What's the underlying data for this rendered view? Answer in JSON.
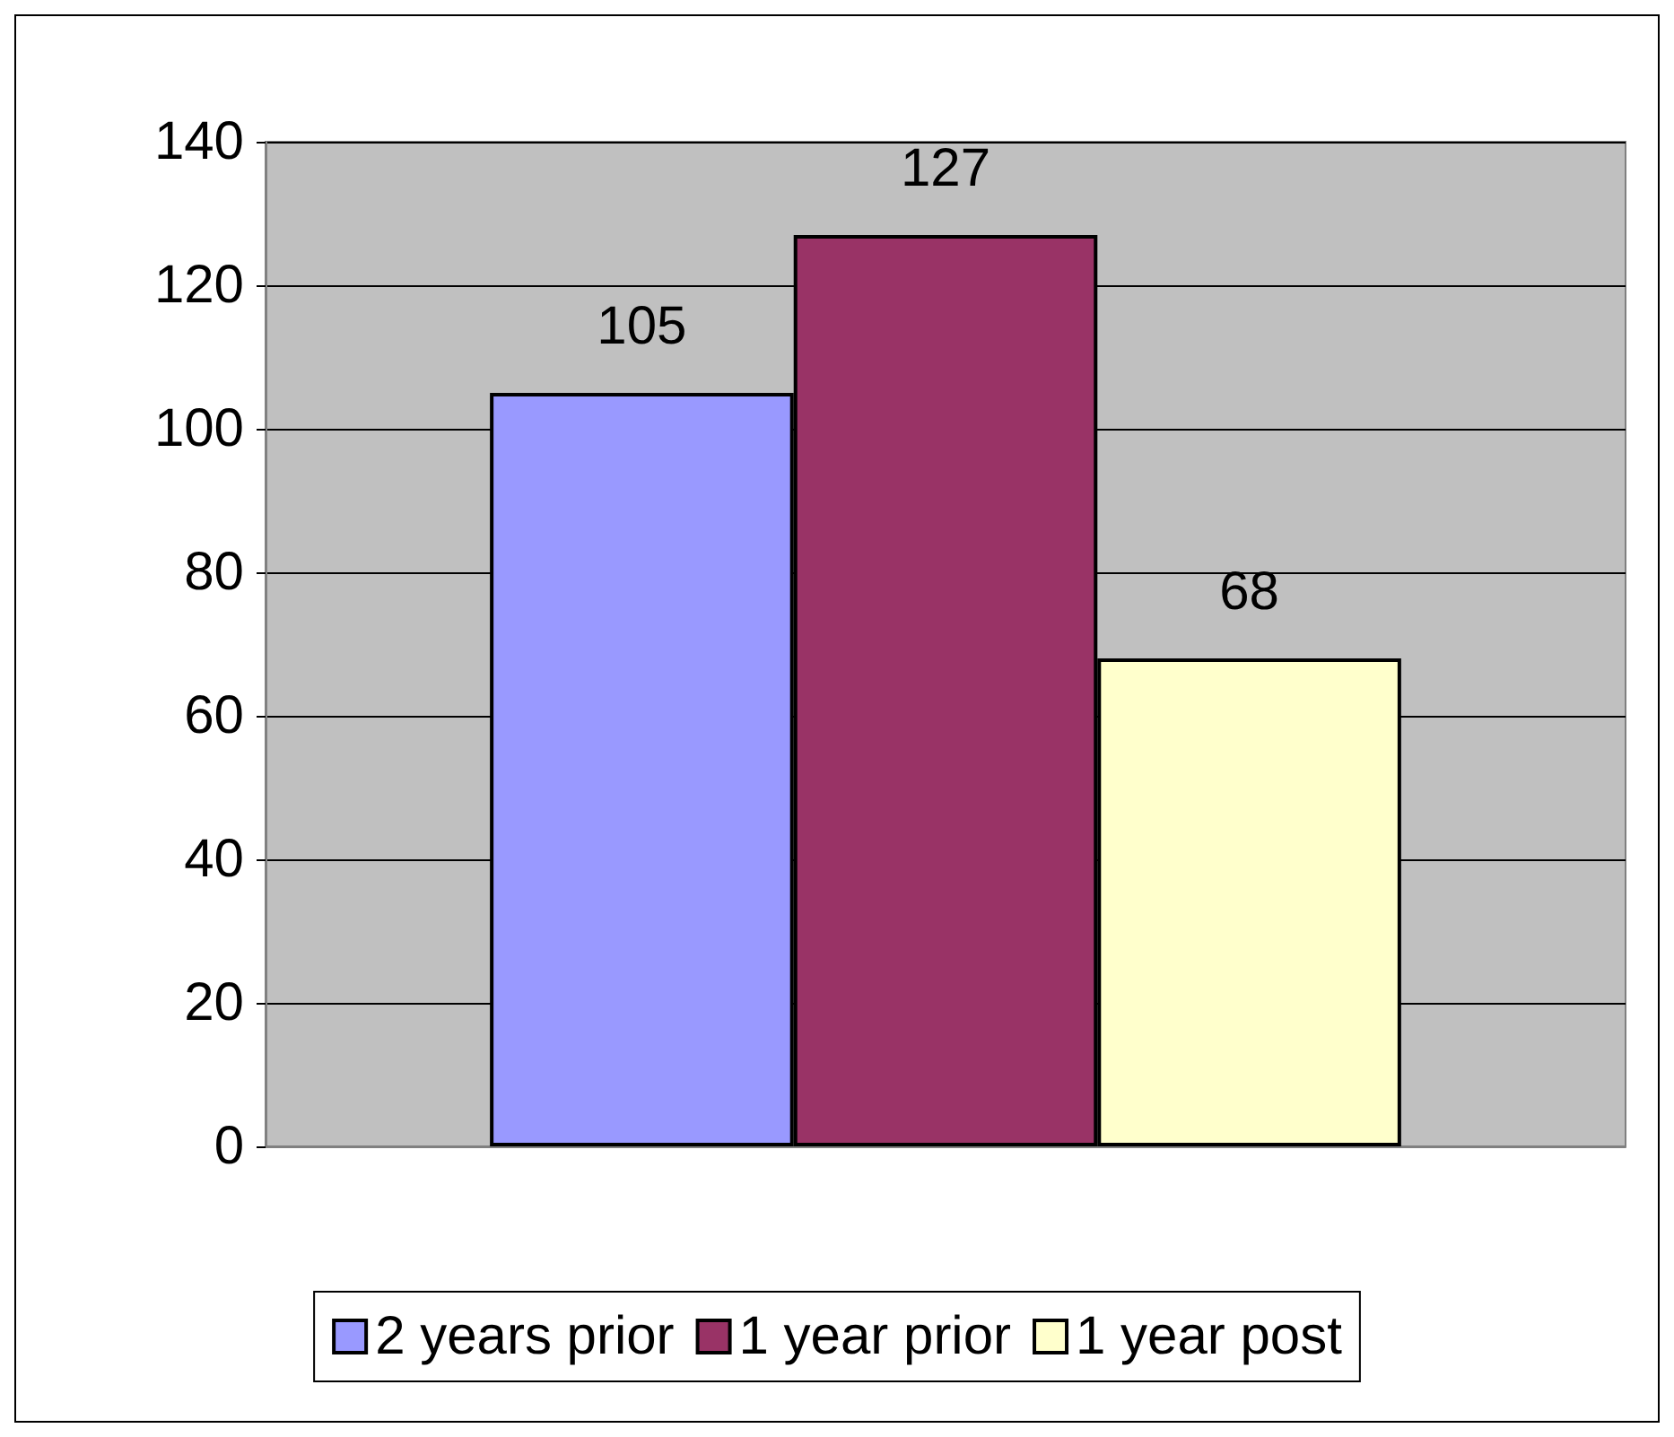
{
  "chart_data": {
    "type": "bar",
    "categories": [
      null
    ],
    "series": [
      {
        "name": "2 years prior",
        "color": "#9999ff",
        "values": [
          105
        ]
      },
      {
        "name": "1 year prior",
        "color": "#993366",
        "values": [
          127
        ]
      },
      {
        "name": "1 year post",
        "color": "#ffffcc",
        "values": [
          68
        ]
      }
    ],
    "ylim": [
      0,
      140
    ],
    "yticks": [
      0,
      20,
      40,
      60,
      80,
      100,
      120,
      140
    ],
    "grid": "y",
    "legend": "bottom",
    "data_labels": true
  }
}
